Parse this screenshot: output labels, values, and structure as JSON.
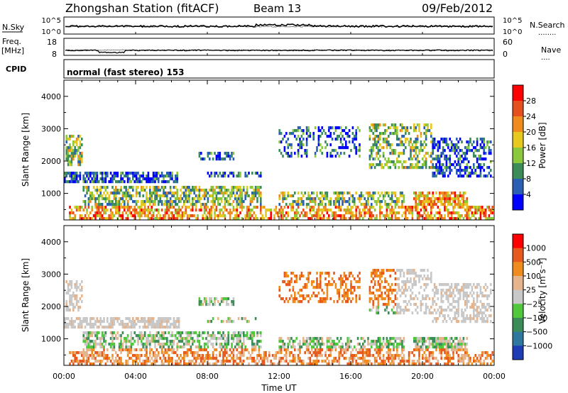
{
  "header": {
    "station": "Zhongshan Station (fitACF)",
    "beam": "Beam 13",
    "date": "09/Feb/2012"
  },
  "top_panels": {
    "nsky_label": "N.Sky",
    "nsearch_label": "N.Search",
    "nsearch_dots": "........",
    "freq_label_line1": "Freq.",
    "freq_label_line2": "[MHz]",
    "nave_label": "Nave",
    "nave_dots": "....",
    "cpid_label": "CPID",
    "cpid_text": "normal (fast stereo) 153",
    "noise_ticks_left": [
      "10^5",
      "10^0"
    ],
    "noise_ticks_right": [
      "10^5",
      "10^0"
    ],
    "freq_ticks": [
      "18",
      "8"
    ],
    "nave_ticks": [
      "60",
      "0"
    ]
  },
  "colors": {
    "power_scale": [
      "#0000ff",
      "#2b5fb4",
      "#3c8c5a",
      "#8cc83c",
      "#e6c81e",
      "#f08c1e",
      "#e6501e",
      "#ff0000"
    ],
    "velocity_scale": [
      "#1e3cb4",
      "#2e78a0",
      "#3c8c5a",
      "#50c83c",
      "#c8c8c8",
      "#e6b48c",
      "#f08c1e",
      "#e65a1e",
      "#ff0000"
    ]
  },
  "chart_data": [
    {
      "type": "heatmap",
      "ylabel": "Slant Range [km]",
      "ylim": [
        180,
        4500
      ],
      "yticks": [
        "1000",
        "2000",
        "3000",
        "4000"
      ],
      "colorbar_label": "Power [dB]",
      "colorbar_ticks": [
        "4",
        "8",
        "12",
        "16",
        "20",
        "24",
        "28"
      ]
    },
    {
      "type": "heatmap",
      "xlabel": "Time UT",
      "ylabel": "Slant Range [km]",
      "ylim": [
        180,
        4500
      ],
      "xticks": [
        "00:00",
        "04:00",
        "08:00",
        "12:00",
        "16:00",
        "20:00",
        "00:00"
      ],
      "yticks": [
        "1000",
        "2000",
        "3000",
        "4000"
      ],
      "colorbar_label": "Velocity [m s⁻¹]",
      "colorbar_ticks": [
        "1000",
        "500",
        "100",
        "25",
        "−25",
        "−100",
        "−500",
        "−1000"
      ]
    }
  ]
}
